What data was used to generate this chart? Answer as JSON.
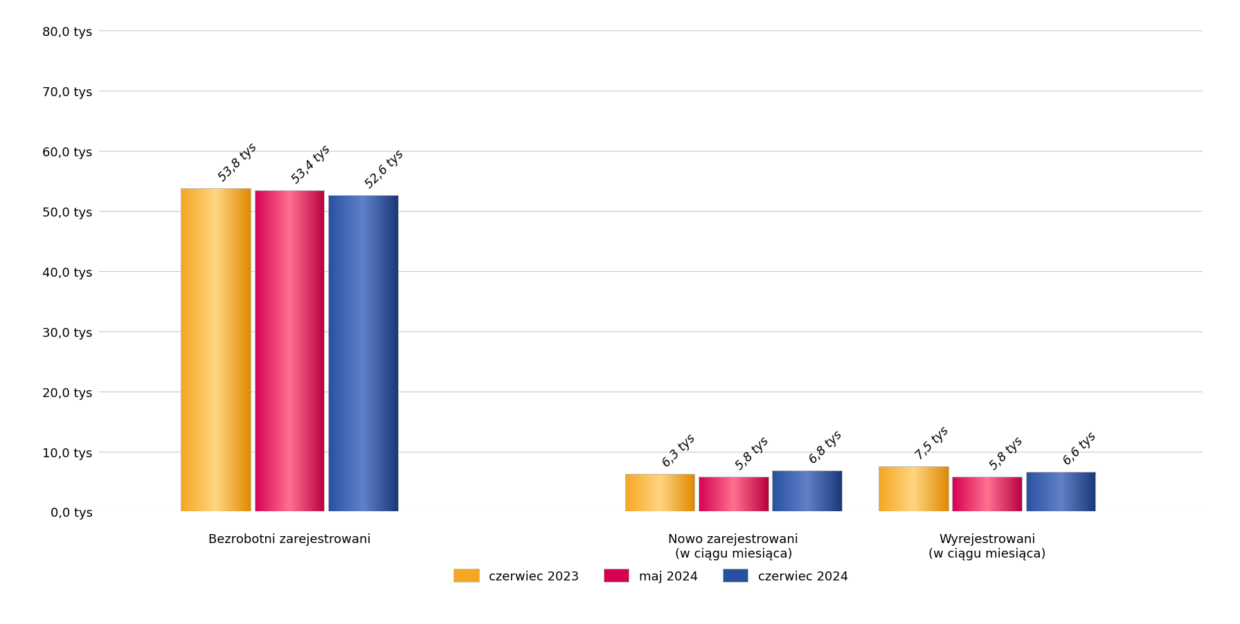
{
  "categories": [
    "Bezrobotni zarejestrowani",
    "Nowo zarejestrowani\n(w ciągu miesiąca)",
    "Wyrejestrowani\n(w ciągu miesiąca)"
  ],
  "series": [
    {
      "label": "czerwiec 2023",
      "values": [
        53.8,
        6.3,
        7.5
      ],
      "labels": [
        "53,8 tys",
        "6,3 tys",
        "7,5 tys"
      ],
      "color_left": "#F5A623",
      "color_center": "#FFD580",
      "color_right": "#E08800"
    },
    {
      "label": "maj 2024",
      "values": [
        53.4,
        5.8,
        5.8
      ],
      "labels": [
        "53,4 tys",
        "5,8 tys",
        "5,8 tys"
      ],
      "color_left": "#D40050",
      "color_center": "#FF7090",
      "color_right": "#B80040"
    },
    {
      "label": "czerwiec 2024",
      "values": [
        52.6,
        6.8,
        6.6
      ],
      "labels": [
        "52,6 tys",
        "6,8 tys",
        "6,6 tys"
      ],
      "color_left": "#2850A0",
      "color_center": "#6080C8",
      "color_right": "#1A3878"
    }
  ],
  "ylim": [
    0,
    80
  ],
  "yticks": [
    0,
    10,
    20,
    30,
    40,
    50,
    60,
    70,
    80
  ],
  "ytick_labels": [
    "0,0 tys",
    "10,0 tys",
    "20,0 tys",
    "30,0 tys",
    "40,0 tys",
    "50,0 tys",
    "60,0 tys",
    "70,0 tys",
    "80,0 tys"
  ],
  "background_color": "#FFFFFF",
  "grid_color": "#C8C8C8",
  "annotation_fontsize": 12.5,
  "bar_width": 0.55,
  "bar_gap": 0.03,
  "group_centers": [
    2.0,
    5.5,
    7.5
  ],
  "xlim": [
    0.5,
    9.2
  ],
  "legend_colors": [
    "#F5A623",
    "#D40050",
    "#2850A0"
  ],
  "legend_center_colors": [
    "#FFD580",
    "#FF7090",
    "#6080C8"
  ]
}
